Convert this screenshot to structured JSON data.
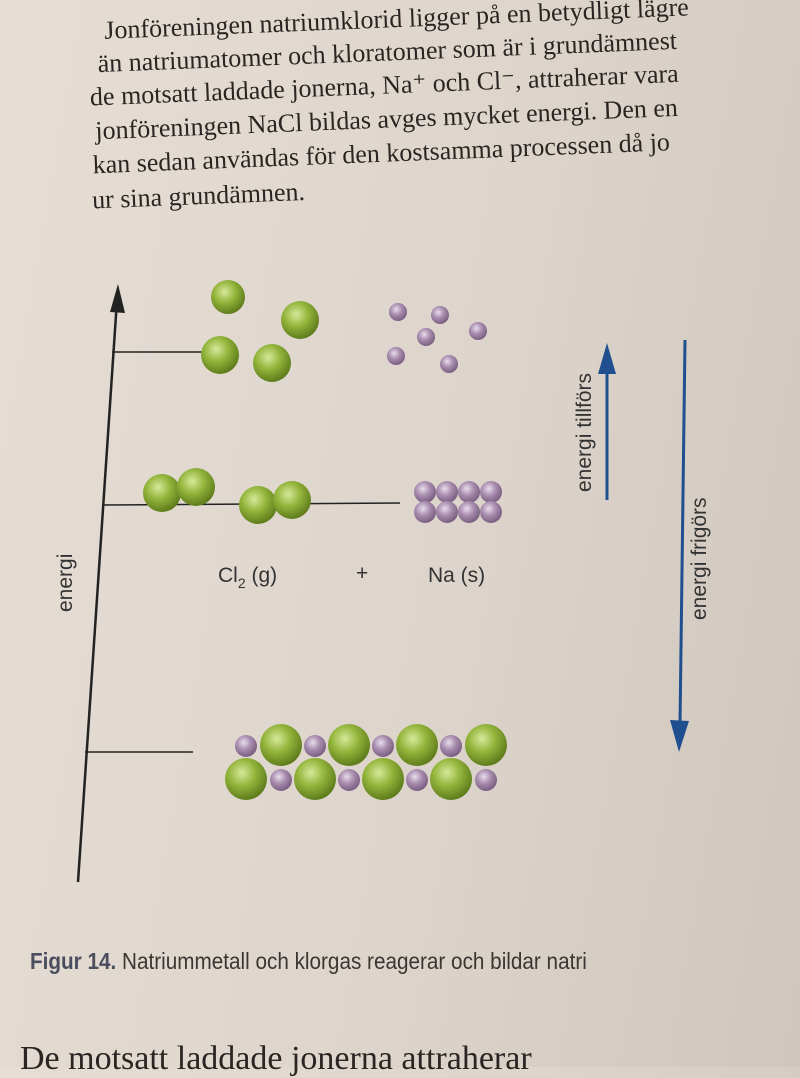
{
  "paragraph": [
    "Jonföreningen natriumklorid ligger på en betydligt lägre",
    "än natriumatomer och kloratomer som är i grundämnest",
    "de motsatt laddade jonerna, Na⁺ och Cl⁻, attraherar vara",
    "jonföreningen NaCl bildas avges mycket energi. Den en",
    "kan sedan användas för den kostsamma processen då jo",
    "ur sina grundämnen."
  ],
  "diagram": {
    "y_axis_label": "energi",
    "cl2_label": "Cl",
    "cl2_subscript": "2",
    "cl2_state": " (g)",
    "plus": "+",
    "na_label": "Na (s)",
    "arrow_up_label": "energi tillförs",
    "arrow_down_label": "energi frigörs",
    "colors": {
      "chlorine": "#8aaa2e",
      "sodium": "#a58aaa",
      "arrow": "#1f4f8f"
    }
  },
  "caption": {
    "prefix": "Figur 14.",
    "text": " Natriummetall och klorgas reagerar och bildar natri"
  },
  "bottom_text": "De motsatt laddade jonerna attraherar"
}
